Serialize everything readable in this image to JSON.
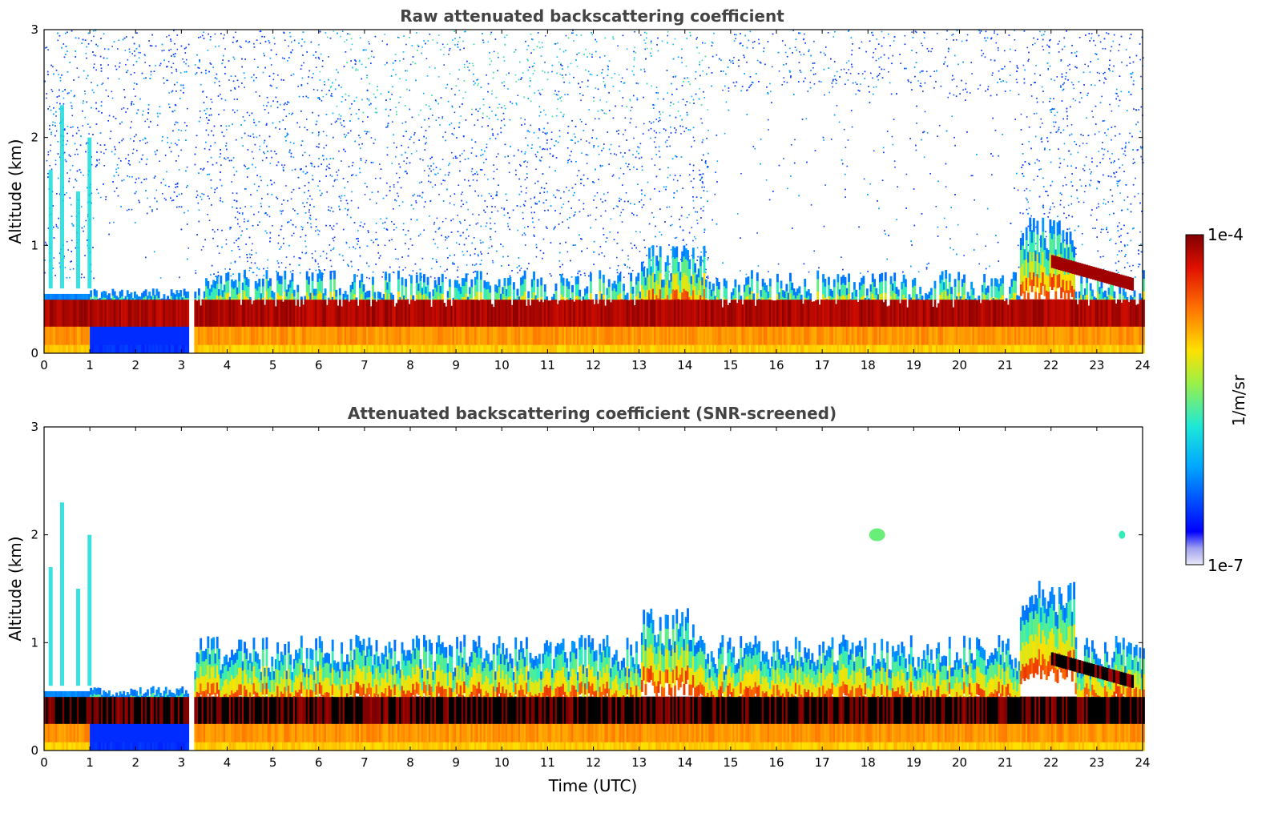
{
  "chart_data": [
    {
      "type": "heatmap",
      "title": "Raw attenuated backscattering coefficient",
      "xlabel": "",
      "ylabel": "Altitude (km)",
      "xlim": [
        0,
        24
      ],
      "ylim": [
        0,
        3
      ],
      "xticks": [
        "0",
        "1",
        "2",
        "3",
        "4",
        "5",
        "6",
        "7",
        "8",
        "9",
        "10",
        "11",
        "12",
        "13",
        "14",
        "15",
        "16",
        "17",
        "18",
        "19",
        "20",
        "21",
        "22",
        "23",
        "24"
      ],
      "yticks": [
        "0",
        "1",
        "2",
        "3"
      ],
      "grid": false,
      "data_gap_utc": [
        3.15,
        3.28
      ],
      "features": {
        "boundary_layer_top_km": 0.6,
        "max_backscatter_layer_km": [
          0.25,
          0.5
        ],
        "aerosol_layer_22_24_utc_km": [
          0.6,
          0.9
        ],
        "clear_region_14_5_21_utc_above_km": 1.0
      }
    },
    {
      "type": "heatmap",
      "title": "Attenuated backscattering coefficient (SNR-screened)",
      "xlabel": "Time (UTC)",
      "ylabel": "Altitude (km)",
      "xlim": [
        0,
        24
      ],
      "ylim": [
        0,
        3
      ],
      "xticks": [
        "0",
        "1",
        "2",
        "3",
        "4",
        "5",
        "6",
        "7",
        "8",
        "9",
        "10",
        "11",
        "12",
        "13",
        "14",
        "15",
        "16",
        "17",
        "18",
        "19",
        "20",
        "21",
        "22",
        "23",
        "24"
      ],
      "yticks": [
        "0",
        "1",
        "2",
        "3"
      ],
      "grid": false,
      "data_gap_utc": [
        3.15,
        3.28
      ],
      "features": {
        "boundary_layer_top_km": 0.9,
        "saturated_layer_km": [
          0.25,
          0.5
        ],
        "isolated_patch_18_utc_km": 2.0,
        "isolated_patch_23_5_utc_km": 2.0
      }
    }
  ],
  "colorbar": {
    "label": "1/m/sr",
    "min_label": "1e-7",
    "max_label": "1e-4",
    "scale": "log",
    "range": [
      1e-07,
      0.0001
    ],
    "colormap": "jet",
    "colors": [
      "#e8e8f8",
      "#0000ff",
      "#00b0ff",
      "#2af0c8",
      "#c8f030",
      "#ffd000",
      "#ff6000",
      "#e01000",
      "#800000"
    ]
  }
}
